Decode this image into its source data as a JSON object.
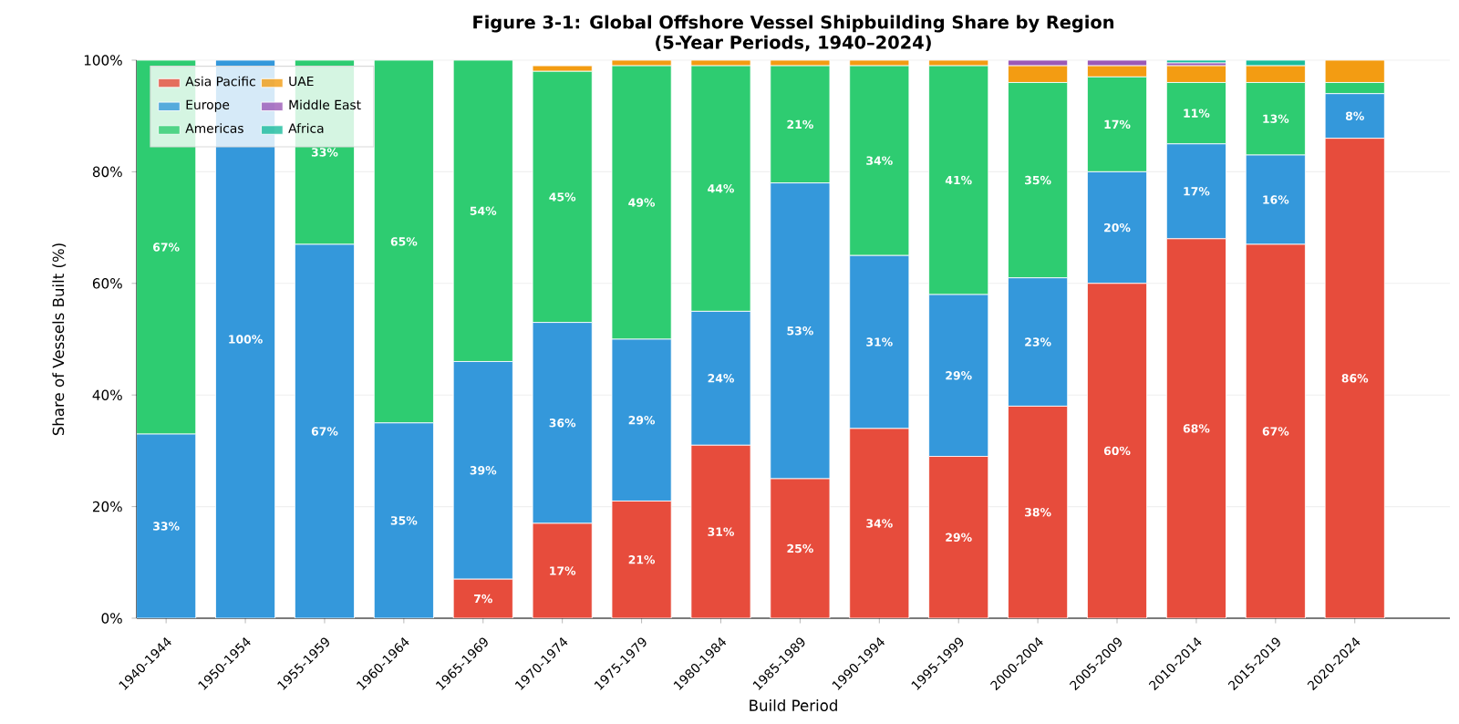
{
  "chart_data": {
    "type": "bar",
    "stacked": true,
    "title": "Figure 3-1: Global Offshore Vessel Shipbuilding Share by Region\n(5-Year Periods, 1940–2024)",
    "xlabel": "Build Period",
    "ylabel": "Share of Vessels Built (%)",
    "categories": [
      "1940-1944",
      "1950-1954",
      "1955-1959",
      "1960-1964",
      "1965-1969",
      "1970-1974",
      "1975-1979",
      "1980-1984",
      "1985-1989",
      "1990-1994",
      "1995-1999",
      "2000-2004",
      "2005-2009",
      "2010-2014",
      "2015-2019",
      "2020-2024"
    ],
    "ylim": [
      0,
      100
    ],
    "yticks": [
      {
        "value": 0,
        "label": "0%"
      },
      {
        "value": 20,
        "label": "20%"
      },
      {
        "value": 40,
        "label": "40%"
      },
      {
        "value": 60,
        "label": "60%"
      },
      {
        "value": 80,
        "label": "80%"
      },
      {
        "value": 100,
        "label": "100%"
      }
    ],
    "grid": "y",
    "legend": "top left",
    "series": [
      {
        "name": "Asia Pacific",
        "color": "#e74c3c",
        "values": [
          0,
          0,
          0,
          0,
          7,
          17,
          21,
          31,
          25,
          34,
          29,
          38,
          60,
          68,
          67,
          86
        ],
        "value_labels": [
          null,
          null,
          null,
          null,
          "7%",
          "17%",
          "21%",
          "31%",
          "25%",
          "34%",
          "29%",
          "38%",
          "60%",
          "68%",
          "67%",
          "86%"
        ]
      },
      {
        "name": "Europe",
        "color": "#3498db",
        "values": [
          33,
          100,
          67,
          35,
          39,
          36,
          29,
          24,
          53,
          31,
          29,
          23,
          20,
          17,
          16,
          8
        ],
        "value_labels": [
          "33%",
          "100%",
          "67%",
          "35%",
          "39%",
          "36%",
          "29%",
          "24%",
          "53%",
          "31%",
          "29%",
          "23%",
          "20%",
          "17%",
          "16%",
          "8%"
        ]
      },
      {
        "name": "Americas",
        "color": "#2ecc71",
        "values": [
          67,
          0,
          33,
          65,
          54,
          45,
          49,
          44,
          21,
          34,
          41,
          35,
          17,
          11,
          13,
          2
        ],
        "value_labels": [
          "67%",
          null,
          "33%",
          "65%",
          "54%",
          "45%",
          "49%",
          "44%",
          "21%",
          "34%",
          "41%",
          "35%",
          "17%",
          "11%",
          "13%",
          null
        ]
      },
      {
        "name": "UAE",
        "color": "#f39c12",
        "values": [
          0,
          0,
          0,
          0,
          0,
          1,
          1,
          1,
          1,
          1,
          1,
          3,
          2,
          3,
          3,
          4
        ]
      },
      {
        "name": "Middle East",
        "color": "#9b59b6",
        "values": [
          0,
          0,
          0,
          0,
          0,
          0,
          0,
          0,
          0,
          0,
          0,
          1,
          1,
          0.5,
          0,
          0
        ]
      },
      {
        "name": "Africa",
        "color": "#1abc9c",
        "values": [
          0,
          0,
          0,
          0,
          0,
          0,
          0,
          0,
          0,
          0,
          0,
          0,
          0,
          0.5,
          1,
          0
        ]
      }
    ]
  }
}
